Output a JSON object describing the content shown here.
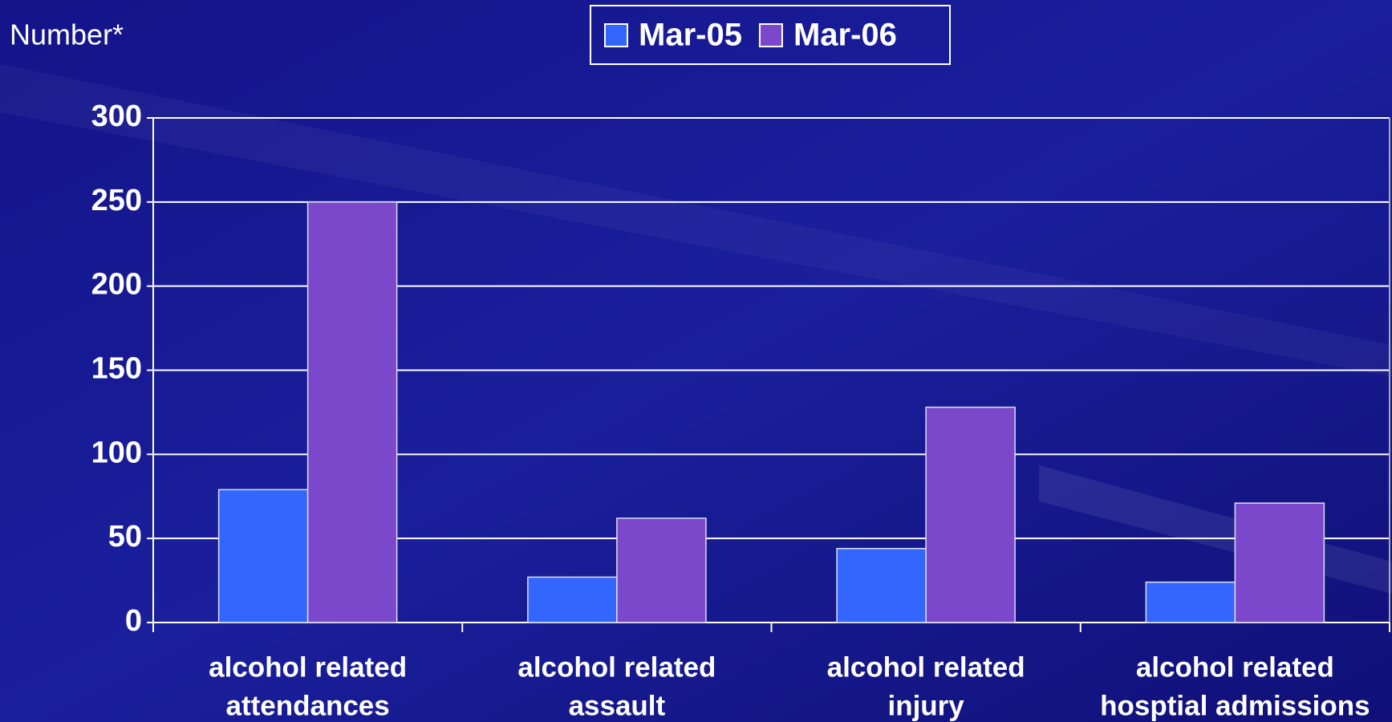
{
  "chart_data": {
    "type": "bar",
    "y_axis_label": "Number*",
    "categories": [
      [
        "alcohol related",
        "attendances"
      ],
      [
        "alcohol related",
        "assault"
      ],
      [
        "alcohol related",
        "injury"
      ],
      [
        "alcohol related",
        "hosptial admissions"
      ]
    ],
    "series": [
      {
        "name": "Mar-05",
        "color": "#3366ff",
        "values": [
          79,
          27,
          44,
          24
        ]
      },
      {
        "name": "Mar-06",
        "color": "#7b48cc",
        "values": [
          250,
          62,
          128,
          71
        ]
      }
    ],
    "ylim": [
      0,
      300
    ],
    "yticks": [
      0,
      50,
      100,
      150,
      200,
      250,
      300
    ],
    "grid": true,
    "legend": "top"
  }
}
